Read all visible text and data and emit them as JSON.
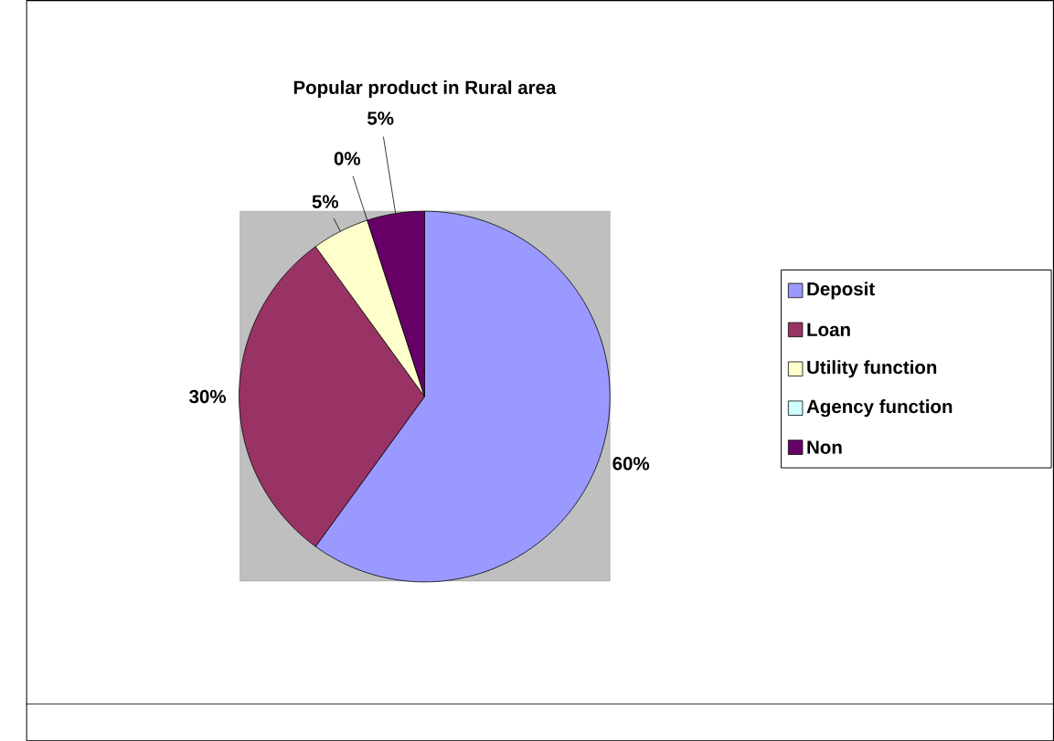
{
  "chart_data": {
    "type": "pie",
    "title": "Popular product in Rural area",
    "categories": [
      "Deposit",
      "Loan",
      "Utility function",
      "Agency function",
      "Non"
    ],
    "values": [
      60,
      30,
      5,
      0,
      5
    ],
    "colors": [
      "#9999ff",
      "#993366",
      "#ffffcc",
      "#ccffff",
      "#660066"
    ],
    "value_labels": [
      "60%",
      "30%",
      "5%",
      "0%",
      "5%"
    ],
    "legend": "right"
  }
}
